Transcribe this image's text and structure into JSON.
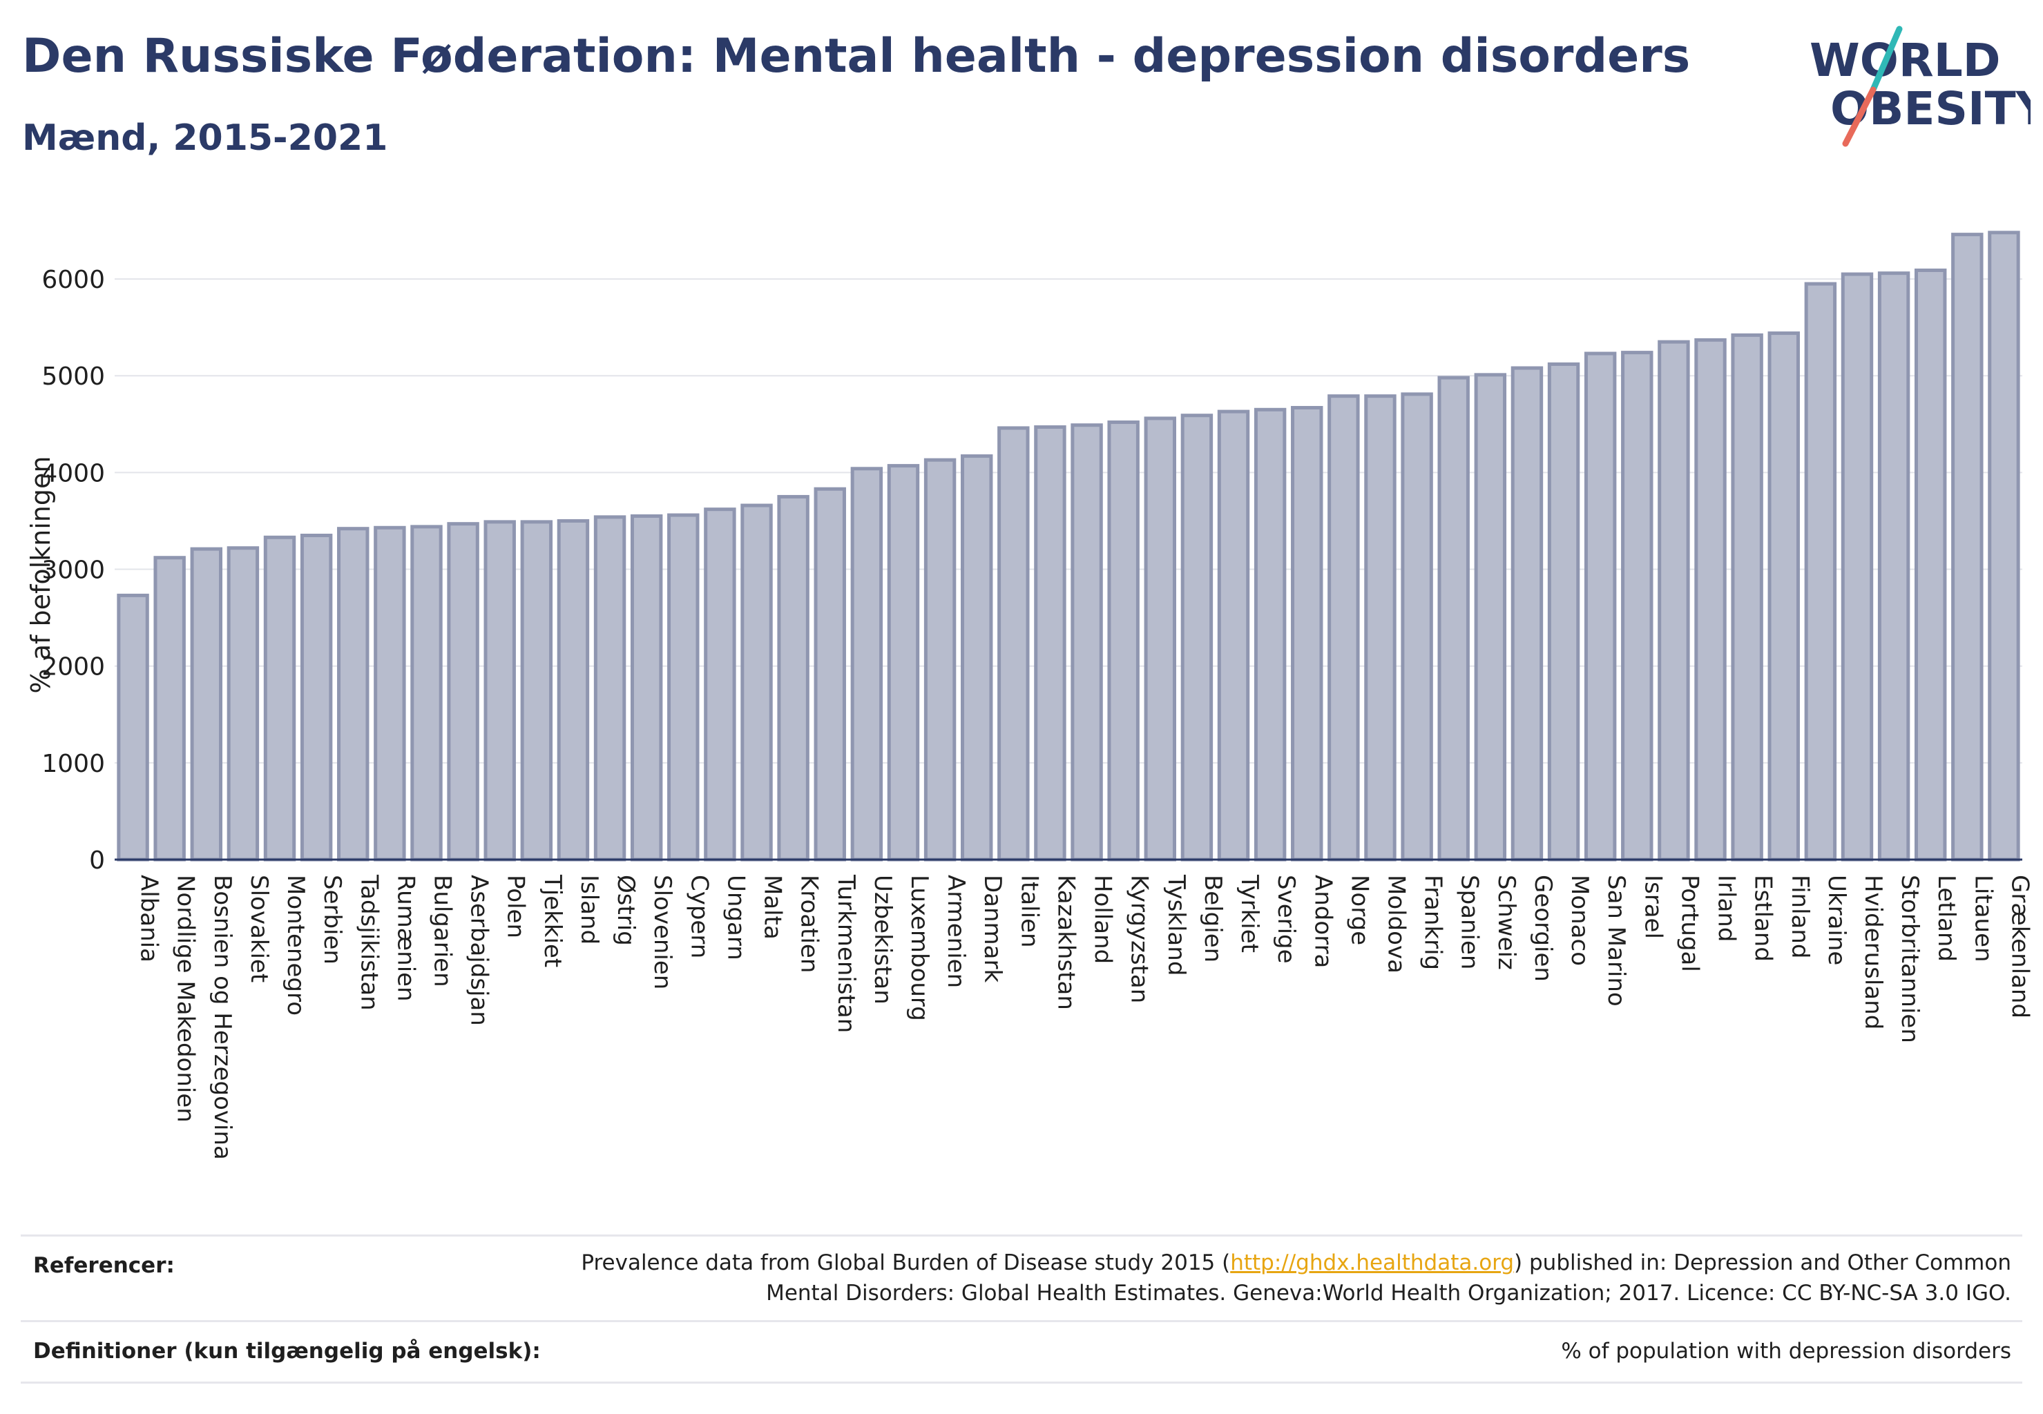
{
  "header": {
    "title": "Den Russiske Føderation: Mental health - depression disorders",
    "subtitle": "Mænd, 2015-2021"
  },
  "logo": {
    "line1": "WORLD",
    "line2": "OBESITY"
  },
  "colors": {
    "bar_fill": "#b7bccd",
    "bar_stroke": "#8f96b0",
    "title": "#2b3a67",
    "accent_teal": "#2fb8b6",
    "accent_coral": "#e86a5a"
  },
  "chart_data": {
    "type": "bar",
    "ylabel": "% af befolkningen",
    "xlabel": "",
    "ylim": [
      0,
      6600
    ],
    "yticks": [
      0,
      1000,
      2000,
      3000,
      4000,
      5000,
      6000
    ],
    "grid": true,
    "categories": [
      "Albania",
      "Nordlige Makedonien",
      "Bosnien og Herzegovina",
      "Slovakiet",
      "Montenegro",
      "Serbien",
      "Tadsjikistan",
      "Rumænien",
      "Bulgarien",
      "Aserbajdsjan",
      "Polen",
      "Tjekkiet",
      "Island",
      "Østrig",
      "Slovenien",
      "Cypern",
      "Ungarn",
      "Malta",
      "Kroatien",
      "Turkmenistan",
      "Uzbekistan",
      "Luxembourg",
      "Armenien",
      "Danmark",
      "Italien",
      "Kazakhstan",
      "Holland",
      "Kyrgyzstan",
      "Tyskland",
      "Belgien",
      "Tyrkiet",
      "Sverige",
      "Andorra",
      "Norge",
      "Moldova",
      "Frankrig",
      "Spanien",
      "Schweiz",
      "Georgien",
      "Monaco",
      "San Marino",
      "Israel",
      "Portugal",
      "Irland",
      "Estland",
      "Finland",
      "Ukraine",
      "Hviderusland",
      "Storbritannien",
      "Letland",
      "Litauen",
      "Grækenland"
    ],
    "values": [
      2730,
      3120,
      3210,
      3220,
      3330,
      3350,
      3420,
      3430,
      3440,
      3470,
      3490,
      3490,
      3500,
      3540,
      3550,
      3560,
      3620,
      3660,
      3750,
      3830,
      4040,
      4070,
      4130,
      4170,
      4460,
      4470,
      4490,
      4520,
      4560,
      4590,
      4630,
      4650,
      4670,
      4790,
      4790,
      4810,
      4980,
      5010,
      5080,
      5120,
      5230,
      5240,
      5350,
      5370,
      5420,
      5440,
      5950,
      6050,
      6060,
      6090,
      6460,
      6480
    ]
  },
  "footer": {
    "references_label": "Referencer:",
    "references_text_before": "Prevalence data from Global Burden of Disease study 2015 (",
    "references_link": "http://ghdx.healthdata.org",
    "references_text_after": ") published in: Depression and Other Common",
    "references_text_line2": "Mental Disorders: Global Health Estimates. Geneva:World Health Organization; 2017. Licence: CC BY-NC-SA 3.0 IGO.",
    "definitions_label": "Definitioner (kun tilgængelig på engelsk):",
    "definitions_text": "% of population with depression disorders"
  }
}
